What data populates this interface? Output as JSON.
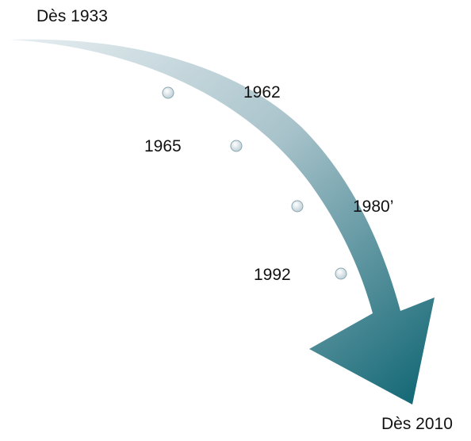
{
  "start_label": "Dès 1933",
  "end_label": "Dès 2010",
  "milestones": [
    {
      "label": "1962"
    },
    {
      "label": "1965"
    },
    {
      "label": "1980’"
    },
    {
      "label": "1992"
    }
  ]
}
